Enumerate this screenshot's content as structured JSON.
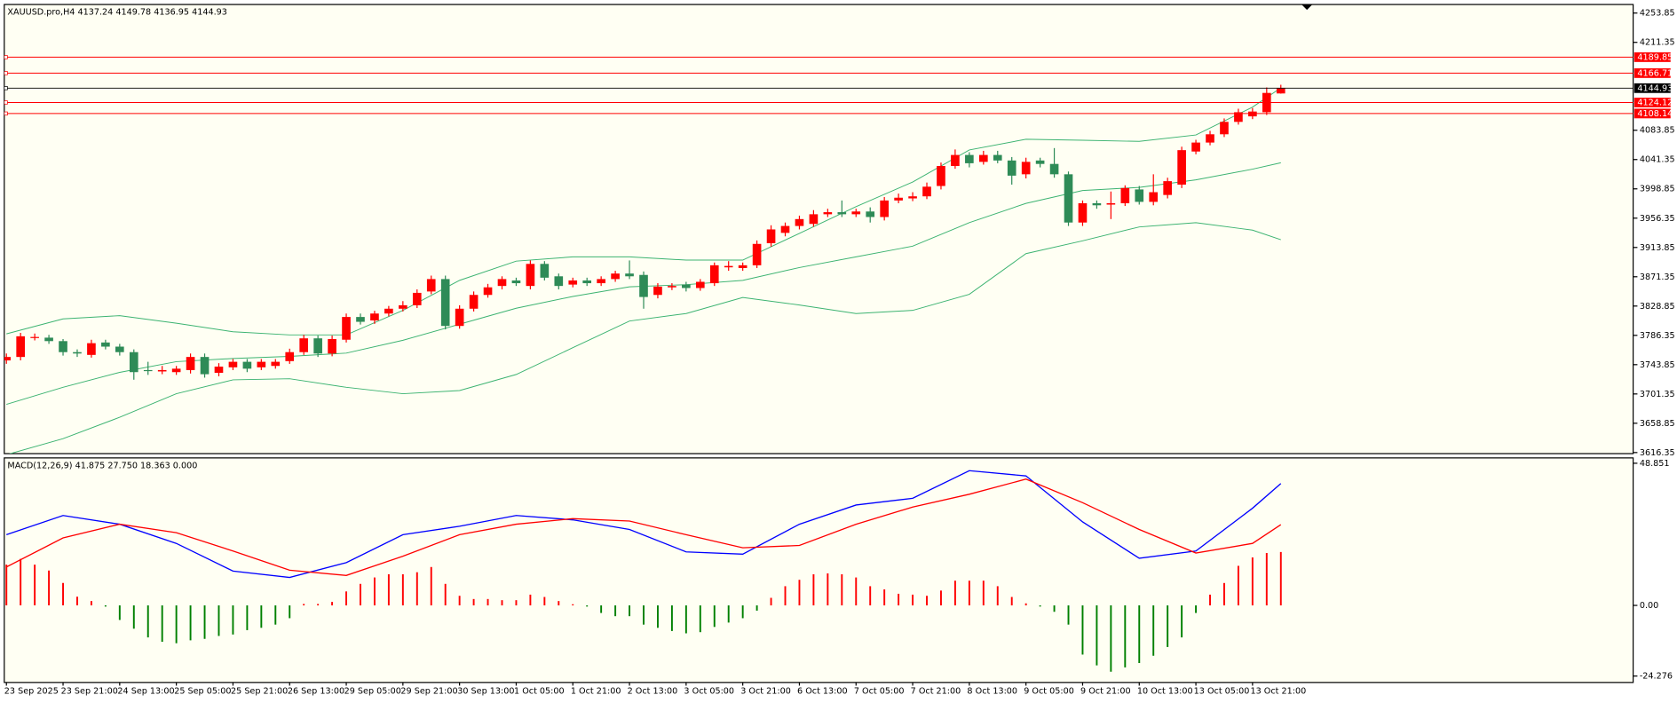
{
  "chart_data": [
    {
      "type": "candlestick",
      "title": "XAUUSD.pro,H4 4137.24 4149.78 4136.95 4144.93",
      "categories": [
        "23 Sep 2025",
        null,
        null,
        null,
        "23 Sep 21:00",
        null,
        null,
        null,
        "24 Sep 13:00",
        null,
        null,
        null,
        "25 Sep 05:00",
        null,
        null,
        null,
        "25 Sep 21:00",
        null,
        null,
        null,
        "26 Sep 13:00",
        null,
        null,
        null,
        "29 Sep 05:00",
        null,
        null,
        null,
        "29 Sep 21:00",
        null,
        null,
        null,
        "30 Sep 13:00",
        null,
        null,
        null,
        "1 Oct 05:00",
        null,
        null,
        null,
        "1 Oct 21:00",
        null,
        null,
        null,
        "2 Oct 13:00",
        null,
        null,
        null,
        "3 Oct 05:00",
        null,
        null,
        null,
        "3 Oct 21:00",
        null,
        null,
        null,
        "6 Oct 13:00",
        null,
        null,
        null,
        "7 Oct 05:00",
        null,
        null,
        null,
        "7 Oct 21:00",
        null,
        null,
        null,
        "8 Oct 13:00",
        null,
        null,
        null,
        "9 Oct 05:00",
        null,
        null,
        null,
        "9 Oct 21:00",
        null,
        null,
        null,
        "10 Oct 13:00",
        null,
        null,
        null,
        "13 Oct 05:00",
        null,
        null,
        null,
        "13 Oct 21:00",
        null,
        null
      ],
      "open": [
        3750,
        3755,
        3783,
        3783,
        3778,
        3762,
        3758,
        3776,
        3770,
        3762,
        3736,
        3734,
        3733,
        3736,
        3755,
        3732,
        3740,
        3748,
        3740,
        3742,
        3749,
        3762,
        3782,
        3760,
        3780,
        3813,
        3808,
        3818,
        3825,
        3830,
        3850,
        3868,
        3800,
        3825,
        3845,
        3858,
        3866,
        3858,
        3890,
        3872,
        3860,
        3866,
        3862,
        3868,
        3876,
        3874,
        3845,
        3856,
        3860,
        3855,
        3862,
        3885,
        3884,
        3888,
        3920,
        3935,
        3945,
        3948,
        3962,
        3965,
        3962,
        3966,
        3958,
        3982,
        3985,
        3988,
        4003,
        4032,
        4048,
        4038,
        4048,
        4040,
        4020,
        4040,
        4035,
        4020,
        3950,
        3978,
        3976,
        3978,
        3998,
        3980,
        3990,
        4005,
        4053,
        4066,
        4078,
        4096,
        4104,
        4110,
        4137.24
      ],
      "high": [
        3760,
        3790,
        3789,
        3787,
        3781,
        3766,
        3780,
        3780,
        3774,
        3766,
        3748,
        3742,
        3742,
        3760,
        3760,
        3746,
        3752,
        3752,
        3752,
        3752,
        3767,
        3787,
        3786,
        3786,
        3818,
        3818,
        3822,
        3829,
        3836,
        3853,
        3873,
        3873,
        3830,
        3850,
        3861,
        3872,
        3870,
        3895,
        3894,
        3876,
        3870,
        3870,
        3872,
        3880,
        3895,
        3879,
        3862,
        3862,
        3864,
        3868,
        3892,
        3894,
        3892,
        3924,
        3946,
        3950,
        3960,
        3968,
        3970,
        3982,
        3970,
        3972,
        3987,
        3992,
        3994,
        4008,
        4037,
        4056,
        4052,
        4054,
        4054,
        4045,
        4044,
        4044,
        4058,
        4024,
        3982,
        3982,
        3995,
        4004,
        4003,
        4020,
        4015,
        4060,
        4070,
        4083,
        4101,
        4115,
        4116,
        4146,
        4149.78
      ],
      "low": [
        3745,
        3750,
        3779,
        3774,
        3757,
        3755,
        3754,
        3766,
        3757,
        3722,
        3729,
        3730,
        3729,
        3731,
        3725,
        3727,
        3736,
        3733,
        3736,
        3738,
        3745,
        3758,
        3755,
        3756,
        3776,
        3802,
        3803,
        3814,
        3821,
        3826,
        3846,
        3795,
        3796,
        3821,
        3841,
        3853,
        3858,
        3853,
        3866,
        3853,
        3856,
        3858,
        3858,
        3864,
        3868,
        3825,
        3840,
        3852,
        3850,
        3851,
        3858,
        3880,
        3880,
        3884,
        3915,
        3930,
        3940,
        3944,
        3958,
        3958,
        3958,
        3950,
        3953,
        3978,
        3981,
        3984,
        3998,
        4028,
        4030,
        4034,
        4036,
        4005,
        4014,
        4030,
        4015,
        3945,
        3945,
        3970,
        3955,
        3974,
        3976,
        3975,
        3985,
        4000,
        4049,
        4062,
        4074,
        4092,
        4100,
        4106,
        4136.95
      ],
      "close": [
        3755,
        3785,
        3784,
        3778,
        3762,
        3760,
        3775,
        3770,
        3762,
        3733,
        3735,
        3736,
        3738,
        3755,
        3730,
        3741,
        3748,
        3738,
        3748,
        3748,
        3762,
        3782,
        3760,
        3781,
        3813,
        3806,
        3818,
        3825,
        3830,
        3848,
        3868,
        3800,
        3825,
        3845,
        3856,
        3868,
        3862,
        3890,
        3870,
        3858,
        3866,
        3862,
        3868,
        3876,
        3872,
        3842,
        3857,
        3858,
        3855,
        3864,
        3888,
        3887,
        3888,
        3919,
        3940,
        3945,
        3955,
        3962,
        3965,
        3962,
        3966,
        3958,
        3982,
        3986,
        3988,
        4002,
        4032,
        4048,
        4036,
        4048,
        4040,
        4018,
        4038,
        4035,
        4020,
        3950,
        3978,
        3975,
        3978,
        4000,
        3980,
        3994,
        4010,
        4055,
        4066,
        4078,
        4096,
        4110,
        4111,
        4138,
        4144.93
      ],
      "up_color": "#ff0000",
      "down_color": "#2e8b57",
      "series": [
        {
          "color": "#3cb371",
          "x": [
            0,
            4,
            8,
            12,
            16,
            20,
            24,
            28,
            32,
            36,
            40,
            44,
            48,
            52,
            56,
            60,
            64,
            68,
            72,
            76,
            80,
            84,
            88,
            90
          ],
          "values": [
            3788.5,
            3810.2,
            3814.9,
            3804.0,
            3791.6,
            3787.0,
            3787.0,
            3822.6,
            3866.1,
            3894.0,
            3900.2,
            3900.2,
            3895.5,
            3895.5,
            3934.3,
            3973.1,
            4008.8,
            4055.3,
            4070.8,
            4069.3,
            4067.7,
            4077.0,
            4117.4,
            4145.3
          ]
        },
        {
          "color": "#3cb371",
          "x": [
            0,
            4,
            8,
            12,
            16,
            20,
            24,
            28,
            32,
            36,
            40,
            44,
            48,
            52,
            56,
            60,
            64,
            68,
            72,
            76,
            80,
            84,
            88,
            90
          ],
          "values": [
            3686.2,
            3711.0,
            3732.7,
            3748.2,
            3752.8,
            3755.9,
            3760.6,
            3779.2,
            3802.5,
            3825.7,
            3842.8,
            3856.8,
            3859.9,
            3866.1,
            3884.7,
            3900.2,
            3915.7,
            3949.8,
            3977.8,
            3996.4,
            4001.0,
            4011.9,
            4027.4,
            4036.7
          ]
        },
        {
          "color": "#3cb371",
          "x": [
            0,
            4,
            8,
            12,
            16,
            20,
            24,
            28,
            32,
            36,
            40,
            44,
            48,
            52,
            56,
            60,
            64,
            68,
            72,
            76,
            80,
            84,
            88,
            90
          ],
          "values": [
            3613.2,
            3636.5,
            3667.5,
            3701.7,
            3721.8,
            3723.4,
            3711.0,
            3701.7,
            3706.3,
            3729.6,
            3768.4,
            3807.1,
            3818.0,
            3841.3,
            3830.4,
            3818.0,
            3822.6,
            3845.9,
            3904.9,
            3923.5,
            3943.6,
            3949.8,
            3939.0,
            3925.1
          ]
        }
      ],
      "hlines": [
        {
          "value": 4189.85,
          "color": "#ff0000"
        },
        {
          "value": 4166.71,
          "color": "#ff0000"
        },
        {
          "value": 4144.93,
          "color": "#000000"
        },
        {
          "value": 4124.12,
          "color": "#ff0000"
        },
        {
          "value": 4108.14,
          "color": "#ff0000"
        }
      ],
      "ylim": [
        3616.35,
        4253.85
      ],
      "yticks": [
        3616.35,
        3658.85,
        3701.35,
        3743.85,
        3786.35,
        3828.85,
        3871.35,
        3913.85,
        3956.35,
        3998.85,
        4041.35,
        4083.85,
        4211.35,
        4253.85
      ]
    },
    {
      "type": "macd",
      "title": "MACD(12,26,9) 41.875 27.750 18.363 0.000",
      "values": [
        14,
        16,
        14,
        12,
        7.7,
        3,
        1.5,
        -0.4,
        -5,
        -8,
        -11,
        -12.5,
        -13,
        -12,
        -11.5,
        -10.5,
        -10,
        -8.5,
        -7.7,
        -6.6,
        -4.4,
        0.5,
        0.5,
        1.2,
        4.8,
        7.4,
        9.6,
        10.7,
        10.7,
        11.4,
        13.2,
        7.4,
        3.3,
        2.2,
        2.2,
        1.8,
        1.8,
        3.7,
        2.9,
        1.5,
        0.4,
        -0.4,
        -2.6,
        -3.7,
        -3.7,
        -6.6,
        -7.7,
        -8.8,
        -9.6,
        -9.2,
        -7.4,
        -5.9,
        -4.4,
        -1.8,
        2.6,
        6.6,
        8.8,
        10.7,
        11,
        10.7,
        9.6,
        6.6,
        5.5,
        4,
        3.7,
        3.3,
        5.1,
        8.5,
        8.5,
        8.5,
        6.6,
        2.9,
        0.7,
        -0.4,
        -2.2,
        -6.6,
        -16.9,
        -20.6,
        -22.8,
        -21.3,
        -19.8,
        -17.3,
        -14.3,
        -11,
        -2.6,
        3.7,
        7.7,
        13.6,
        16.5,
        18,
        18.363
      ],
      "positive_color": "#ff0000",
      "negative_color": "#008000",
      "series": [
        {
          "color": "#0000ff",
          "x": [
            0,
            4,
            8,
            12,
            16,
            20,
            24,
            28,
            32,
            36,
            40,
            44,
            48,
            52,
            56,
            60,
            64,
            68,
            72,
            76,
            80,
            84,
            88,
            90
          ],
          "values": [
            24.3,
            30.9,
            27.9,
            21.3,
            11.8,
            9.6,
            14.7,
            24.3,
            27.2,
            30.9,
            29.4,
            26.1,
            18.4,
            17.6,
            27.9,
            34.5,
            36.8,
            46.3,
            44.5,
            28.7,
            16.2,
            18.7,
            33.4,
            41.875
          ]
        },
        {
          "color": "#ff0000",
          "x": [
            0,
            4,
            8,
            12,
            16,
            20,
            24,
            28,
            32,
            36,
            40,
            44,
            48,
            52,
            56,
            60,
            64,
            68,
            72,
            76,
            80,
            84,
            88,
            90
          ],
          "values": [
            13.2,
            23.2,
            27.9,
            25.0,
            18.7,
            12.1,
            10.3,
            16.9,
            24.3,
            27.9,
            29.8,
            29.0,
            24.3,
            19.8,
            20.6,
            27.9,
            33.8,
            38.2,
            43.4,
            35.3,
            26.1,
            18.0,
            21.3,
            27.75
          ]
        }
      ],
      "ylim": [
        -24.276,
        48.851
      ],
      "yticks": [
        -24.276,
        {
          "value": 0,
          "label": "0.00"
        },
        48.851
      ]
    }
  ]
}
